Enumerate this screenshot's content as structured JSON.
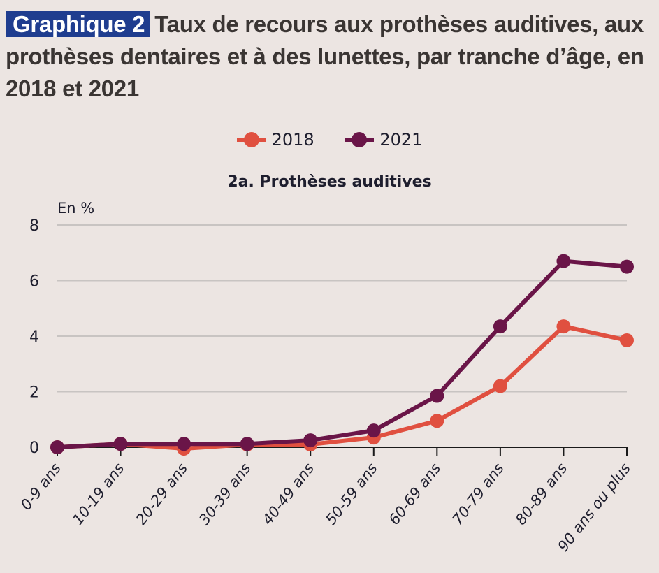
{
  "header": {
    "badge": "Graphique 2",
    "title": "Taux de recours aux prothèses auditives, aux prothèses dentaires et à des lunettes, par tranche d’âge, en 2018 et 2021"
  },
  "colors": {
    "background": "#ece5e2",
    "badge": "#1f3d8f",
    "series_2018": "#e05040",
    "series_2021": "#6a1548",
    "grid": "#c8c4c2",
    "axis": "#1a1a1a"
  },
  "chart_data": {
    "type": "line",
    "title": "2a. Prothèses auditives",
    "ylabel": "En %",
    "xlabel": "",
    "categories": [
      "0-9 ans",
      "10-19 ans",
      "20-29 ans",
      "30-39 ans",
      "40-49 ans",
      "50-59 ans",
      "60-69 ans",
      "70-79 ans",
      "80-89 ans",
      "90 ans ou plus"
    ],
    "series": [
      {
        "name": "2018",
        "color": "#e05040",
        "values": [
          0.0,
          0.12,
          -0.05,
          0.1,
          0.1,
          0.35,
          0.95,
          2.2,
          4.35,
          3.85
        ]
      },
      {
        "name": "2021",
        "color": "#6a1548",
        "values": [
          0.0,
          0.12,
          0.12,
          0.12,
          0.25,
          0.6,
          1.85,
          4.35,
          6.7,
          6.5
        ]
      }
    ],
    "ylim": [
      0,
      8
    ],
    "yticks": [
      0,
      2,
      4,
      6,
      8
    ],
    "grid": true,
    "legend": "top-center"
  }
}
